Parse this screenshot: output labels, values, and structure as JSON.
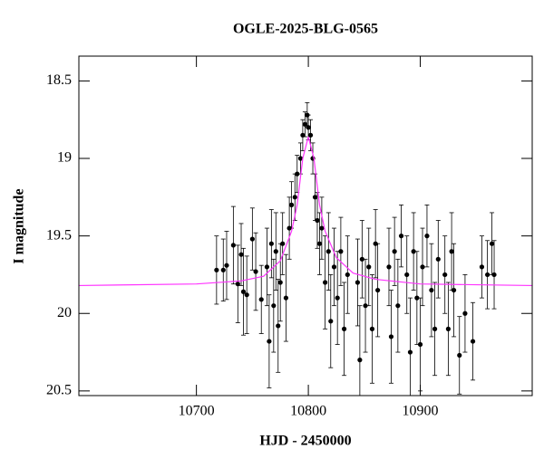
{
  "chart_data": {
    "type": "scatter",
    "title": "OGLE-2025-BLG-0565",
    "xlabel": "HJD - 2450000",
    "ylabel": "I magnitude",
    "xlim": [
      10595,
      11000
    ],
    "ylim": [
      18.34,
      20.53
    ],
    "y_inverted": true,
    "xticks": [
      10700,
      10800,
      10900
    ],
    "yticks": [
      18.5,
      19,
      19.5,
      20,
      20.5
    ],
    "series": [
      {
        "type": "scatter",
        "color": "#000000",
        "x": [
          10718,
          10724,
          10727,
          10733,
          10737,
          10740,
          10742,
          10745,
          10750,
          10753,
          10758,
          10763,
          10765,
          10767,
          10769,
          10771,
          10773,
          10775,
          10777,
          10780,
          10783,
          10785,
          10788,
          10790,
          10793,
          10795,
          10797,
          10799,
          10800,
          10802,
          10804,
          10806,
          10808,
          10810,
          10812,
          10815,
          10818,
          10820,
          10823,
          10826,
          10829,
          10832,
          10835,
          10844,
          10846,
          10848,
          10851,
          10854,
          10857,
          10860,
          10862,
          10872,
          10874,
          10877,
          10880,
          10883,
          10888,
          10891,
          10894,
          10897,
          10900,
          10902,
          10906,
          10910,
          10913,
          10916,
          10922,
          10925,
          10928,
          10930,
          10935,
          10940,
          10947,
          10955,
          10960,
          10964,
          10966
        ],
        "values": [
          19.72,
          19.72,
          19.69,
          19.56,
          19.81,
          19.62,
          19.86,
          19.88,
          19.52,
          19.73,
          19.91,
          19.7,
          20.18,
          19.55,
          19.95,
          19.6,
          20.08,
          19.8,
          19.55,
          19.9,
          19.45,
          19.3,
          19.25,
          19.1,
          19.0,
          18.85,
          18.78,
          18.72,
          18.8,
          18.85,
          19.0,
          19.25,
          19.4,
          19.55,
          19.45,
          19.8,
          19.6,
          20.05,
          19.7,
          19.9,
          19.6,
          20.1,
          19.75,
          19.8,
          20.3,
          19.65,
          19.95,
          19.7,
          20.1,
          19.55,
          19.85,
          19.7,
          20.15,
          19.6,
          19.95,
          19.5,
          19.75,
          20.25,
          19.6,
          19.9,
          20.2,
          19.7,
          19.5,
          19.85,
          20.1,
          19.65,
          19.75,
          20.1,
          19.6,
          19.85,
          20.27,
          20.0,
          20.18,
          19.7,
          19.75,
          19.55,
          19.75
        ],
        "errors": [
          0.22,
          0.2,
          0.22,
          0.25,
          0.25,
          0.2,
          0.28,
          0.25,
          0.2,
          0.25,
          0.22,
          0.25,
          0.3,
          0.22,
          0.3,
          0.25,
          0.3,
          0.25,
          0.2,
          0.28,
          0.2,
          0.15,
          0.15,
          0.12,
          0.1,
          0.1,
          0.08,
          0.08,
          0.08,
          0.1,
          0.1,
          0.15,
          0.18,
          0.2,
          0.2,
          0.3,
          0.25,
          0.3,
          0.25,
          0.3,
          0.22,
          0.3,
          0.25,
          0.28,
          0.35,
          0.25,
          0.3,
          0.25,
          0.35,
          0.22,
          0.3,
          0.25,
          0.3,
          0.22,
          0.3,
          0.2,
          0.25,
          0.35,
          0.25,
          0.3,
          0.3,
          0.25,
          0.2,
          0.3,
          0.3,
          0.25,
          0.25,
          0.3,
          0.25,
          0.3,
          0.25,
          0.25,
          0.25,
          0.2,
          0.22,
          0.2,
          0.22
        ]
      },
      {
        "type": "line",
        "color": "#ff33ff",
        "x": [
          10595,
          10700,
          10740,
          10760,
          10775,
          10785,
          10790,
          10795,
          10800,
          10805,
          10810,
          10815,
          10825,
          10840,
          10860,
          10900,
          11000
        ],
        "values": [
          19.82,
          19.81,
          19.79,
          19.76,
          19.66,
          19.47,
          19.3,
          19.0,
          18.86,
          19.0,
          19.3,
          19.47,
          19.64,
          19.74,
          19.78,
          19.81,
          19.82
        ]
      }
    ]
  }
}
